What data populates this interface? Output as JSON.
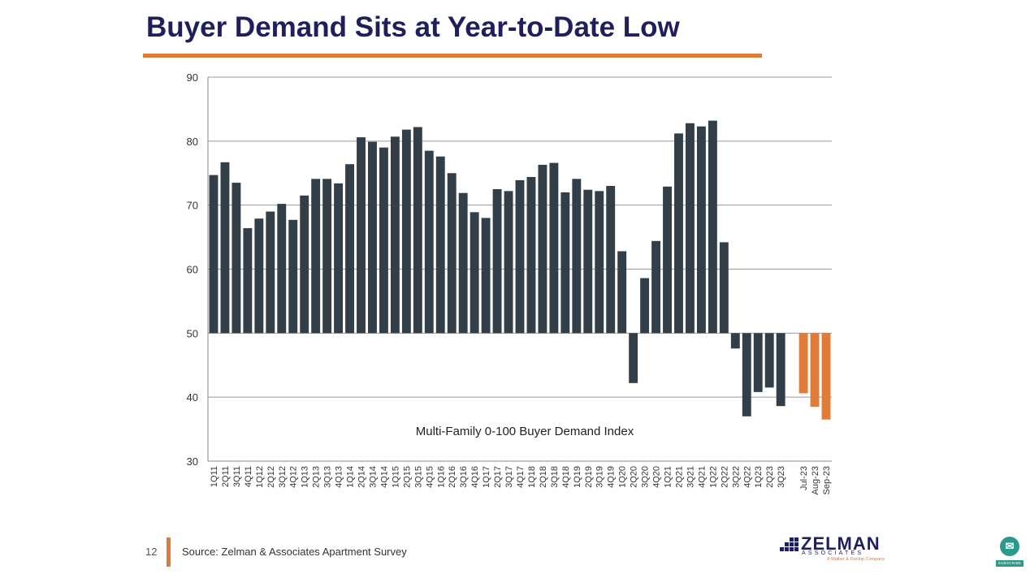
{
  "slide": {
    "title": "Buyer Demand Sits at Year-to-Date Low",
    "page_number": "12",
    "source": "Source: Zelman & Associates Apartment Survey"
  },
  "logo": {
    "name": "ZELMAN",
    "subtitle": "ASSOCIATES",
    "tagline": "A Walker & Dunlop Company"
  },
  "subscribe": {
    "label": "SUBSCRIBE",
    "icon": "subscribe-icon"
  },
  "colors": {
    "title": "#1f1f5b",
    "accent": "#e07b39",
    "bar": "#333f48",
    "bar_highlight": "#e07b39"
  },
  "chart_data": {
    "type": "bar",
    "annotation": "Multi-Family 0-100 Buyer Demand Index",
    "ylim": [
      30,
      90
    ],
    "yticks": [
      30,
      40,
      50,
      60,
      70,
      80,
      90
    ],
    "baseline": 50,
    "grid": true,
    "categories": [
      "1Q11",
      "2Q11",
      "3Q11",
      "4Q11",
      "1Q12",
      "2Q12",
      "3Q12",
      "4Q12",
      "1Q13",
      "2Q13",
      "3Q13",
      "4Q13",
      "1Q14",
      "2Q14",
      "3Q14",
      "4Q14",
      "1Q15",
      "2Q15",
      "3Q15",
      "4Q15",
      "1Q16",
      "2Q16",
      "3Q16",
      "4Q16",
      "1Q17",
      "2Q17",
      "3Q17",
      "4Q17",
      "1Q18",
      "2Q18",
      "3Q18",
      "4Q18",
      "1Q19",
      "2Q19",
      "3Q19",
      "4Q19",
      "1Q20",
      "2Q20",
      "3Q20",
      "4Q20",
      "1Q21",
      "2Q21",
      "3Q21",
      "4Q21",
      "1Q22",
      "2Q22",
      "3Q22",
      "4Q22",
      "1Q23",
      "2Q23",
      "3Q23",
      "",
      "Jul-23",
      "Aug-23",
      "Sep-23"
    ],
    "values": [
      74.7,
      76.7,
      73.5,
      66.4,
      67.9,
      69.0,
      70.2,
      67.7,
      71.5,
      74.1,
      74.1,
      73.4,
      76.4,
      80.6,
      79.9,
      79.0,
      80.7,
      81.8,
      82.2,
      78.5,
      77.6,
      75.0,
      71.9,
      68.9,
      68.0,
      72.5,
      72.2,
      73.9,
      74.4,
      76.3,
      76.6,
      72.0,
      74.1,
      72.4,
      72.2,
      73.0,
      62.8,
      42.2,
      58.6,
      64.4,
      72.9,
      81.2,
      82.8,
      82.3,
      83.2,
      64.2,
      47.6,
      37.0,
      40.8,
      41.5,
      38.6,
      null,
      40.6,
      38.5,
      36.5
    ],
    "highlight_categories": [
      "Jul-23",
      "Aug-23",
      "Sep-23"
    ]
  }
}
